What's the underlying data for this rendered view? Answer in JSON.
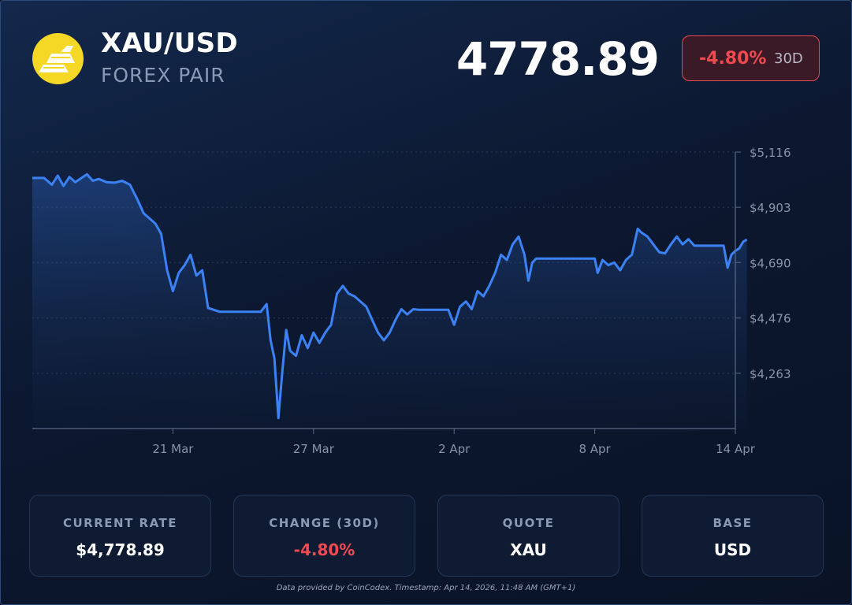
{
  "header": {
    "pair": "XAU/USD",
    "type": "FOREX PAIR",
    "price": "4778.89",
    "change": "-4.80%",
    "period": "30D"
  },
  "colors": {
    "accent": "#3b82f6",
    "negative": "#f04a50",
    "logo": "#f5d726"
  },
  "logo_icon": "gold-bars-icon",
  "chart_data": {
    "type": "area",
    "y_ticks": [
      5116,
      4903,
      4690,
      4476,
      4263
    ],
    "y_tick_labels": [
      "$5,116",
      "$4,903",
      "$4,690",
      "$4,476",
      "$4,263"
    ],
    "ylim": [
      4050,
      5116
    ],
    "x_ticks": [
      {
        "x": "2026-03-21",
        "label": "21 Mar"
      },
      {
        "x": "2026-03-27",
        "label": "27 Mar"
      },
      {
        "x": "2026-04-02",
        "label": "2 Apr"
      },
      {
        "x": "2026-04-08",
        "label": "8 Apr"
      },
      {
        "x": "2026-04-14",
        "label": "14 Apr"
      }
    ],
    "xlim": [
      "2026-03-15",
      "2026-04-14"
    ],
    "grid": true,
    "points": [
      [
        "2026-03-15T00:00",
        5016
      ],
      [
        "2026-03-15T12:00",
        5016
      ],
      [
        "2026-03-15T20:00",
        4990
      ],
      [
        "2026-03-16T02:00",
        5025
      ],
      [
        "2026-03-16T08:00",
        4985
      ],
      [
        "2026-03-16T14:00",
        5020
      ],
      [
        "2026-03-16T20:00",
        5000
      ],
      [
        "2026-03-17T02:00",
        5015
      ],
      [
        "2026-03-17T08:00",
        5030
      ],
      [
        "2026-03-17T14:00",
        5005
      ],
      [
        "2026-03-17T20:00",
        5012
      ],
      [
        "2026-03-18T04:00",
        5000
      ],
      [
        "2026-03-18T12:00",
        4998
      ],
      [
        "2026-03-18T20:00",
        5005
      ],
      [
        "2026-03-19T04:00",
        4990
      ],
      [
        "2026-03-19T12:00",
        4930
      ],
      [
        "2026-03-19T18:00",
        4880
      ],
      [
        "2026-03-20T00:00",
        4860
      ],
      [
        "2026-03-20T06:00",
        4840
      ],
      [
        "2026-03-20T12:00",
        4800
      ],
      [
        "2026-03-20T18:00",
        4660
      ],
      [
        "2026-03-21T00:00",
        4580
      ],
      [
        "2026-03-21T06:00",
        4650
      ],
      [
        "2026-03-21T12:00",
        4680
      ],
      [
        "2026-03-21T18:00",
        4720
      ],
      [
        "2026-03-22T00:00",
        4640
      ],
      [
        "2026-03-22T06:00",
        4660
      ],
      [
        "2026-03-22T12:00",
        4515
      ],
      [
        "2026-03-23T00:00",
        4500
      ],
      [
        "2026-03-24T00:00",
        4500
      ],
      [
        "2026-03-24T18:00",
        4500
      ],
      [
        "2026-03-25T00:00",
        4530
      ],
      [
        "2026-03-25T04:00",
        4390
      ],
      [
        "2026-03-25T08:00",
        4320
      ],
      [
        "2026-03-25T12:00",
        4090
      ],
      [
        "2026-03-25T16:00",
        4270
      ],
      [
        "2026-03-25T20:00",
        4430
      ],
      [
        "2026-03-26T00:00",
        4350
      ],
      [
        "2026-03-26T06:00",
        4330
      ],
      [
        "2026-03-26T12:00",
        4410
      ],
      [
        "2026-03-26T18:00",
        4360
      ],
      [
        "2026-03-27T00:00",
        4420
      ],
      [
        "2026-03-27T06:00",
        4380
      ],
      [
        "2026-03-27T12:00",
        4420
      ],
      [
        "2026-03-27T18:00",
        4450
      ],
      [
        "2026-03-28T00:00",
        4570
      ],
      [
        "2026-03-28T06:00",
        4600
      ],
      [
        "2026-03-28T12:00",
        4570
      ],
      [
        "2026-03-28T18:00",
        4560
      ],
      [
        "2026-03-29T00:00",
        4540
      ],
      [
        "2026-03-29T06:00",
        4520
      ],
      [
        "2026-03-29T12:00",
        4470
      ],
      [
        "2026-03-29T18:00",
        4420
      ],
      [
        "2026-03-30T00:00",
        4390
      ],
      [
        "2026-03-30T06:00",
        4420
      ],
      [
        "2026-03-30T12:00",
        4470
      ],
      [
        "2026-03-30T18:00",
        4510
      ],
      [
        "2026-03-31T00:00",
        4490
      ],
      [
        "2026-03-31T06:00",
        4510
      ],
      [
        "2026-03-31T12:00",
        4508
      ],
      [
        "2026-04-01T00:00",
        4508
      ],
      [
        "2026-04-01T18:00",
        4508
      ],
      [
        "2026-04-02T00:00",
        4450
      ],
      [
        "2026-04-02T06:00",
        4520
      ],
      [
        "2026-04-02T12:00",
        4540
      ],
      [
        "2026-04-02T18:00",
        4510
      ],
      [
        "2026-04-03T00:00",
        4580
      ],
      [
        "2026-04-03T06:00",
        4560
      ],
      [
        "2026-04-03T12:00",
        4600
      ],
      [
        "2026-04-03T18:00",
        4650
      ],
      [
        "2026-04-04T00:00",
        4720
      ],
      [
        "2026-04-04T06:00",
        4700
      ],
      [
        "2026-04-04T12:00",
        4760
      ],
      [
        "2026-04-04T18:00",
        4790
      ],
      [
        "2026-04-05T00:00",
        4720
      ],
      [
        "2026-04-05T04:00",
        4620
      ],
      [
        "2026-04-05T08:00",
        4690
      ],
      [
        "2026-04-05T12:00",
        4705
      ],
      [
        "2026-04-06T00:00",
        4705
      ],
      [
        "2026-04-07T00:00",
        4705
      ],
      [
        "2026-04-08T00:00",
        4705
      ],
      [
        "2026-04-08T03:00",
        4650
      ],
      [
        "2026-04-08T08:00",
        4700
      ],
      [
        "2026-04-08T14:00",
        4680
      ],
      [
        "2026-04-08T20:00",
        4690
      ],
      [
        "2026-04-09T02:00",
        4660
      ],
      [
        "2026-04-09T08:00",
        4700
      ],
      [
        "2026-04-09T14:00",
        4720
      ],
      [
        "2026-04-09T20:00",
        4820
      ],
      [
        "2026-04-10T00:00",
        4805
      ],
      [
        "2026-04-10T06:00",
        4790
      ],
      [
        "2026-04-10T12:00",
        4760
      ],
      [
        "2026-04-10T18:00",
        4730
      ],
      [
        "2026-04-11T00:00",
        4725
      ],
      [
        "2026-04-11T06:00",
        4760
      ],
      [
        "2026-04-11T12:00",
        4790
      ],
      [
        "2026-04-11T18:00",
        4760
      ],
      [
        "2026-04-12T00:00",
        4780
      ],
      [
        "2026-04-12T06:00",
        4755
      ],
      [
        "2026-04-12T12:00",
        4755
      ],
      [
        "2026-04-13T00:00",
        4755
      ],
      [
        "2026-04-13T12:00",
        4755
      ],
      [
        "2026-04-13T16:00",
        4670
      ],
      [
        "2026-04-13T20:00",
        4720
      ],
      [
        "2026-04-14T00:00",
        4735
      ],
      [
        "2026-04-14T04:00",
        4745
      ],
      [
        "2026-04-14T08:00",
        4770
      ],
      [
        "2026-04-14T11:48",
        4779
      ]
    ]
  },
  "stats": [
    {
      "label": "CURRENT RATE",
      "value": "$4,778.89"
    },
    {
      "label": "CHANGE (30D)",
      "value": "-4.80%"
    },
    {
      "label": "QUOTE",
      "value": "XAU"
    },
    {
      "label": "BASE",
      "value": "USD"
    }
  ],
  "footer": "Data provided by CoinCodex. Timestamp: Apr 14, 2026, 11:48 AM (GMT+1)"
}
